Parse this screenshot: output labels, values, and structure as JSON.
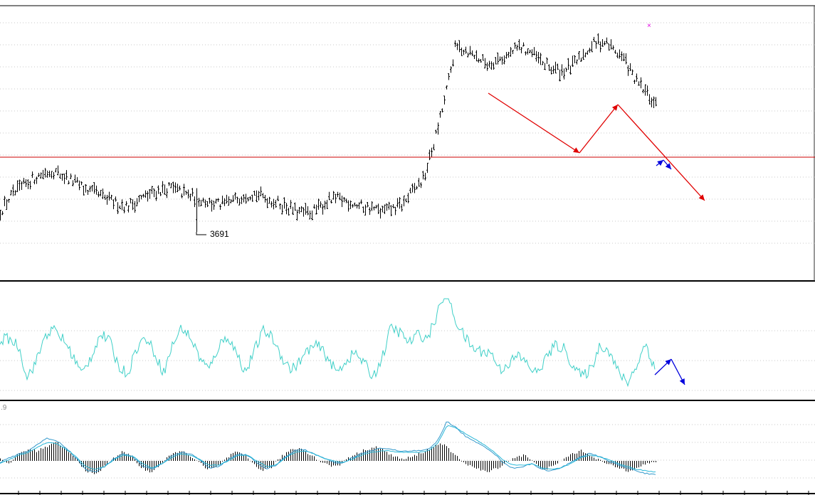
{
  "colors": {
    "background": "#ffffff",
    "grid": "#c8c8c8",
    "bars": "#000000",
    "hline": "#cc0000",
    "arrow_red": "#e00000",
    "arrow_blue": "#0000dd",
    "oscillator": "#40d0c8",
    "macd_signal": "#2ab8d8",
    "marker": "#e000e0",
    "separator": "#000000"
  },
  "chart_data": [
    {
      "type": "ohlc",
      "panel": "price",
      "grid": true,
      "annotations": [
        {
          "kind": "low_label",
          "text": "3691"
        },
        {
          "kind": "horizontal_line",
          "color": "red"
        },
        {
          "kind": "arrows",
          "colors": [
            "red",
            "blue"
          ]
        },
        {
          "kind": "marker",
          "symbol": "×",
          "color": "magenta"
        }
      ],
      "trend_points": [
        13,
        34,
        46,
        58,
        66,
        70,
        62,
        54,
        44,
        38,
        30,
        24,
        20,
        28,
        36,
        42,
        46,
        40,
        34,
        30,
        24,
        22,
        28,
        36,
        38,
        32,
        26,
        20,
        12,
        10,
        16,
        28,
        30,
        26,
        20,
        18,
        12,
        16,
        22,
        42,
        58,
        110,
        170,
        244,
        240,
        230,
        220,
        226,
        232,
        244,
        238,
        224,
        214,
        210,
        216,
        232,
        248,
        252,
        240,
        226,
        196,
        180,
        160
      ]
    },
    {
      "type": "line",
      "panel": "oscillator",
      "grid": true,
      "series_points": [
        70,
        72,
        62,
        18,
        40,
        78,
        84,
        70,
        48,
        22,
        46,
        78,
        70,
        34,
        22,
        58,
        74,
        52,
        24,
        64,
        88,
        72,
        44,
        28,
        60,
        76,
        52,
        24,
        56,
        84,
        72,
        46,
        28,
        40,
        58,
        62,
        46,
        24,
        40,
        52,
        38,
        18,
        44,
        88,
        80,
        66,
        78,
        72,
        104,
        140,
        100,
        76,
        58,
        54,
        52,
        28,
        38,
        48,
        36,
        22,
        44,
        62,
        58,
        34,
        18,
        30,
        64,
        54,
        24,
        10,
        34,
        66,
        28
      ]
    },
    {
      "type": "macd",
      "panel": "macd",
      "label": ".9",
      "grid": true,
      "histogram": [
        3,
        -4,
        10,
        16,
        14,
        20,
        26,
        16,
        4,
        -12,
        -20,
        -10,
        4,
        12,
        8,
        -10,
        -16,
        -6,
        6,
        14,
        10,
        0,
        -12,
        -10,
        2,
        12,
        8,
        -4,
        -14,
        -8,
        6,
        16,
        18,
        10,
        0,
        -6,
        -8,
        4,
        10,
        16,
        20,
        14,
        6,
        2,
        6,
        12,
        18,
        26,
        14,
        2,
        -6,
        -12,
        -16,
        -10,
        -2,
        6,
        8,
        -4,
        -12,
        -8,
        2,
        10,
        14,
        8,
        0,
        -6,
        -10,
        -14,
        -8,
        -4,
        -2
      ],
      "macd_line": [
        -2,
        4,
        10,
        14,
        24,
        32,
        28,
        18,
        4,
        -12,
        -16,
        -8,
        4,
        10,
        6,
        -8,
        -12,
        -4,
        6,
        12,
        10,
        2,
        -10,
        -8,
        2,
        10,
        8,
        -2,
        -12,
        -6,
        6,
        14,
        16,
        10,
        4,
        -2,
        -4,
        4,
        10,
        14,
        18,
        16,
        14,
        14,
        14,
        16,
        28,
        56,
        46,
        34,
        26,
        20,
        10,
        -4,
        -10,
        -8,
        -4,
        -12,
        -14,
        -10,
        -2,
        6,
        10,
        6,
        0,
        -6,
        -10,
        -14,
        -18,
        -20
      ],
      "signal_line": [
        -4,
        2,
        8,
        12,
        20,
        26,
        24,
        16,
        6,
        -8,
        -12,
        -8,
        2,
        8,
        6,
        -4,
        -10,
        -4,
        4,
        10,
        8,
        2,
        -6,
        -6,
        0,
        8,
        8,
        0,
        -8,
        -6,
        4,
        12,
        14,
        10,
        4,
        0,
        -2,
        2,
        8,
        12,
        14,
        14,
        12,
        12,
        12,
        14,
        24,
        50,
        46,
        38,
        30,
        22,
        12,
        0,
        -6,
        -6,
        -4,
        -10,
        -12,
        -10,
        -4,
        4,
        8,
        6,
        2,
        -4,
        -8,
        -12,
        -14,
        -16
      ]
    }
  ]
}
